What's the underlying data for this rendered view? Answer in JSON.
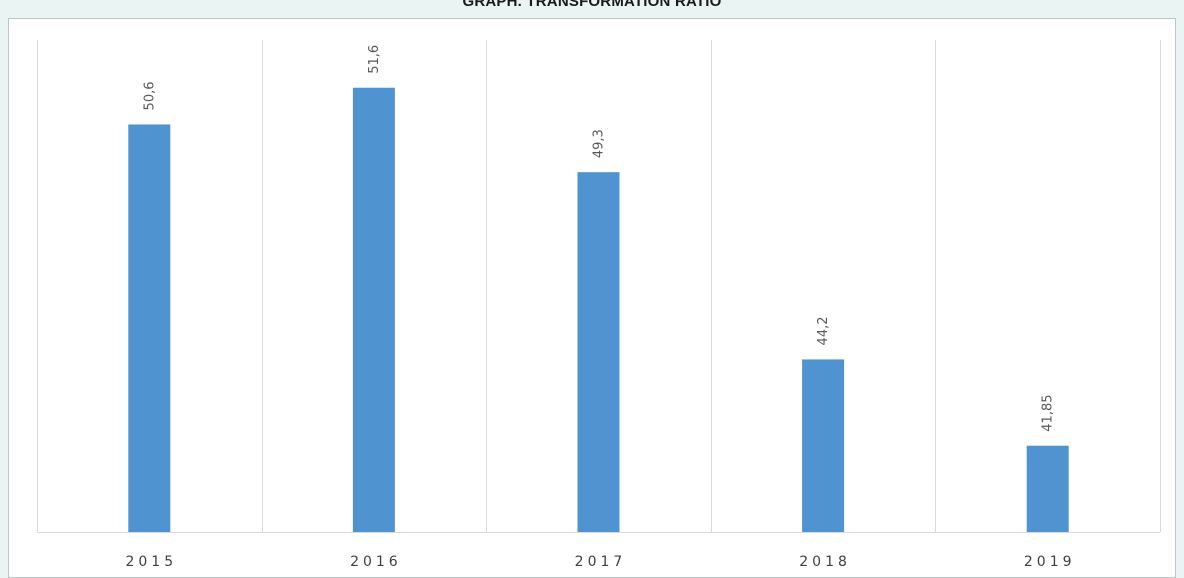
{
  "chart_data": {
    "type": "bar",
    "title": "GRAPH. TRANSFORMATION RATIO",
    "categories": [
      "2015",
      "2016",
      "2017",
      "2018",
      "2019"
    ],
    "values": [
      50.6,
      51.6,
      49.3,
      44.2,
      41.85
    ],
    "value_labels": [
      "50,6",
      "51,6",
      "49,3",
      "44,2",
      "41,85"
    ],
    "ylim": [
      39.5,
      52.9
    ],
    "xlabel": "",
    "ylabel": "",
    "grid": "vertical category separators",
    "legend": "none",
    "bar_color": "#4f93d0"
  }
}
